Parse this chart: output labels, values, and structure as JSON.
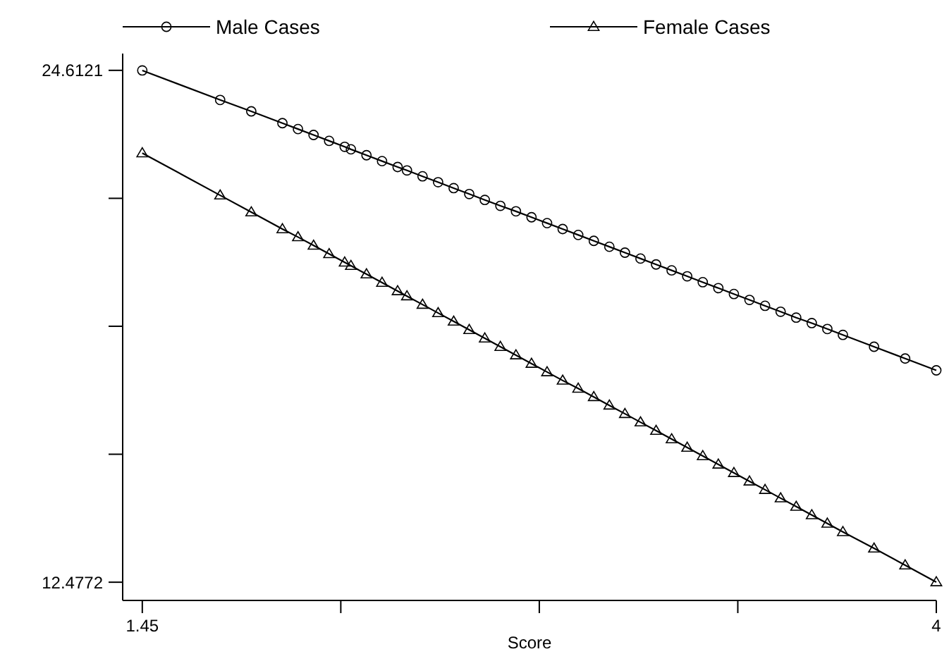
{
  "chart_data": {
    "type": "line",
    "xlabel": "Score",
    "x": [
      1.45,
      1.7,
      1.8,
      1.9,
      1.95,
      2.0,
      2.05,
      2.1,
      2.12,
      2.17,
      2.22,
      2.27,
      2.3,
      2.35,
      2.4,
      2.45,
      2.5,
      2.55,
      2.6,
      2.65,
      2.7,
      2.75,
      2.8,
      2.85,
      2.9,
      2.95,
      3.0,
      3.05,
      3.1,
      3.15,
      3.2,
      3.25,
      3.3,
      3.35,
      3.4,
      3.45,
      3.5,
      3.55,
      3.6,
      3.65,
      3.7,
      3.8,
      3.9,
      4.0
    ],
    "series": [
      {
        "name": "Male Cases",
        "color": "#000000",
        "marker": "circle",
        "values": [
          24.61,
          23.91,
          23.64,
          23.36,
          23.22,
          23.08,
          22.94,
          22.8,
          22.74,
          22.6,
          22.46,
          22.32,
          22.24,
          22.1,
          21.96,
          21.82,
          21.68,
          21.54,
          21.4,
          21.27,
          21.13,
          20.99,
          20.85,
          20.71,
          20.57,
          20.43,
          20.29,
          20.15,
          20.01,
          19.87,
          19.73,
          19.59,
          19.45,
          19.31,
          19.17,
          19.03,
          18.89,
          18.75,
          18.62,
          18.48,
          18.34,
          18.06,
          17.78,
          17.5
        ]
      },
      {
        "name": "Female Cases",
        "color": "#000000",
        "marker": "triangle",
        "values": [
          22.65,
          21.65,
          21.25,
          20.85,
          20.66,
          20.46,
          20.26,
          20.06,
          19.98,
          19.78,
          19.58,
          19.38,
          19.26,
          19.06,
          18.86,
          18.66,
          18.46,
          18.26,
          18.06,
          17.86,
          17.66,
          17.46,
          17.26,
          17.07,
          16.87,
          16.67,
          16.47,
          16.27,
          16.07,
          15.87,
          15.67,
          15.47,
          15.27,
          15.07,
          14.87,
          14.67,
          14.47,
          14.27,
          14.07,
          13.87,
          13.67,
          13.28,
          12.88,
          12.48
        ]
      }
    ],
    "xlim": [
      1.387,
      4.0
    ],
    "xticks": [
      1.45,
      {
        "value": 2.0875,
        "label": null
      },
      {
        "value": 2.725,
        "label": null
      },
      {
        "value": 3.3625,
        "label": null
      },
      4
    ],
    "ylim": [
      12.045,
      25.01
    ],
    "yticks": [
      12.4772,
      {
        "value": 15.511,
        "label": null
      },
      {
        "value": 18.545,
        "label": null
      },
      {
        "value": 21.578,
        "label": null
      },
      24.6121
    ],
    "grid": false,
    "legend": "top",
    "line_style": "solid"
  }
}
